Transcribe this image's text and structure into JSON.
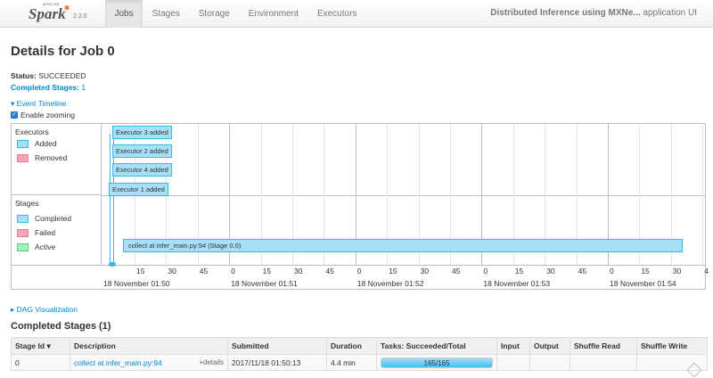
{
  "brand": {
    "apache": "APACHE",
    "name": "Spark",
    "version": "2.2.0"
  },
  "nav": {
    "tabs": [
      "Jobs",
      "Stages",
      "Storage",
      "Environment",
      "Executors"
    ],
    "active": "Jobs"
  },
  "app_title": {
    "name": "Distributed Inference using MXNe...",
    "suffix": "application UI"
  },
  "page_title": "Details for Job 0",
  "status": {
    "label": "Status:",
    "value": "SUCCEEDED"
  },
  "completed_stages": {
    "label": "Completed Stages:",
    "value": "1"
  },
  "event_timeline": {
    "label": "Event Timeline",
    "zoom_label": "Enable zooming",
    "zoom_checked": true
  },
  "timeline": {
    "executors_title": "Executors",
    "executors_legend": [
      {
        "label": "Added",
        "color": "#a6e0f7"
      },
      {
        "label": "Removed",
        "color": "#f7a5b4"
      }
    ],
    "stages_title": "Stages",
    "stages_legend": [
      {
        "label": "Completed",
        "color": "#a6e0f7"
      },
      {
        "label": "Failed",
        "color": "#f7a5b4"
      },
      {
        "label": "Active",
        "color": "#a3f2b8"
      }
    ],
    "executor_events": [
      "Executor 3 added",
      "Executor 2 added",
      "Executor 4 added",
      "Executor 1 added"
    ],
    "stage_bar": "collect at infer_main.py:94 (Stage 0.0)",
    "minute_labels": [
      "18 November 01:50",
      "18 November 01:51",
      "18 November 01:52",
      "18 November 01:53",
      "18 November 01:54"
    ],
    "tick_labels": [
      "15",
      "30",
      "45",
      "0",
      "15",
      "30",
      "45",
      "0",
      "15",
      "30",
      "45",
      "0",
      "15",
      "30",
      "45",
      "0",
      "15",
      "30",
      "4"
    ]
  },
  "dag": {
    "label": "DAG Visualization"
  },
  "completed_section": {
    "title": "Completed Stages (1)"
  },
  "table": {
    "headers": [
      "Stage Id",
      "Description",
      "Submitted",
      "Duration",
      "Tasks: Succeeded/Total",
      "Input",
      "Output",
      "Shuffle Read",
      "Shuffle Write"
    ],
    "rows": [
      {
        "stage_id": "0",
        "description": "collect at infer_main.py:94",
        "details": "+details",
        "submitted": "2017/11/18 01:50:13",
        "duration": "4.4 min",
        "tasks": "165/165",
        "tasks_fraction": 1.0,
        "input": "",
        "output": "",
        "shuffle_read": "",
        "shuffle_write": ""
      }
    ]
  }
}
